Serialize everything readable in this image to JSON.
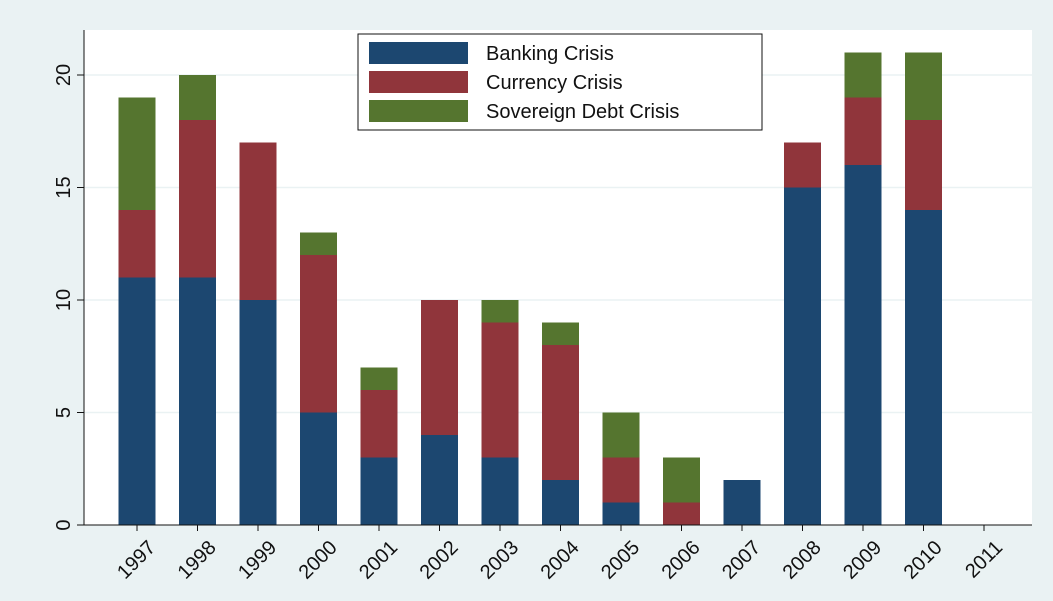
{
  "chart_data": {
    "type": "bar",
    "stacked": true,
    "categories": [
      "1997",
      "1998",
      "1999",
      "2000",
      "2001",
      "2002",
      "2003",
      "2004",
      "2005",
      "2006",
      "2007",
      "2008",
      "2009",
      "2010",
      "2011"
    ],
    "series": [
      {
        "name": "Banking Crisis",
        "color": "#1c4770",
        "values": [
          11,
          11,
          10,
          5,
          3,
          4,
          3,
          2,
          1,
          0,
          2,
          15,
          16,
          14,
          0
        ]
      },
      {
        "name": "Currency Crisis",
        "color": "#90353b",
        "values": [
          3,
          7,
          7,
          7,
          3,
          6,
          6,
          6,
          2,
          1,
          0,
          2,
          3,
          4,
          0
        ]
      },
      {
        "name": "Sovereign Debt Crisis",
        "color": "#55752f",
        "values": [
          5,
          2,
          0,
          1,
          1,
          0,
          1,
          1,
          2,
          2,
          0,
          0,
          2,
          3,
          0
        ]
      }
    ],
    "yticks": [
      0,
      5,
      10,
      15,
      20
    ],
    "ylim": [
      0,
      22
    ],
    "title": "",
    "xlabel": "",
    "ylabel": "",
    "grid": true,
    "legend_position": "top-center",
    "background_color": "#eaf2f3",
    "plot_background_color": "#ffffff",
    "grid_color": "#eaf2f3"
  }
}
